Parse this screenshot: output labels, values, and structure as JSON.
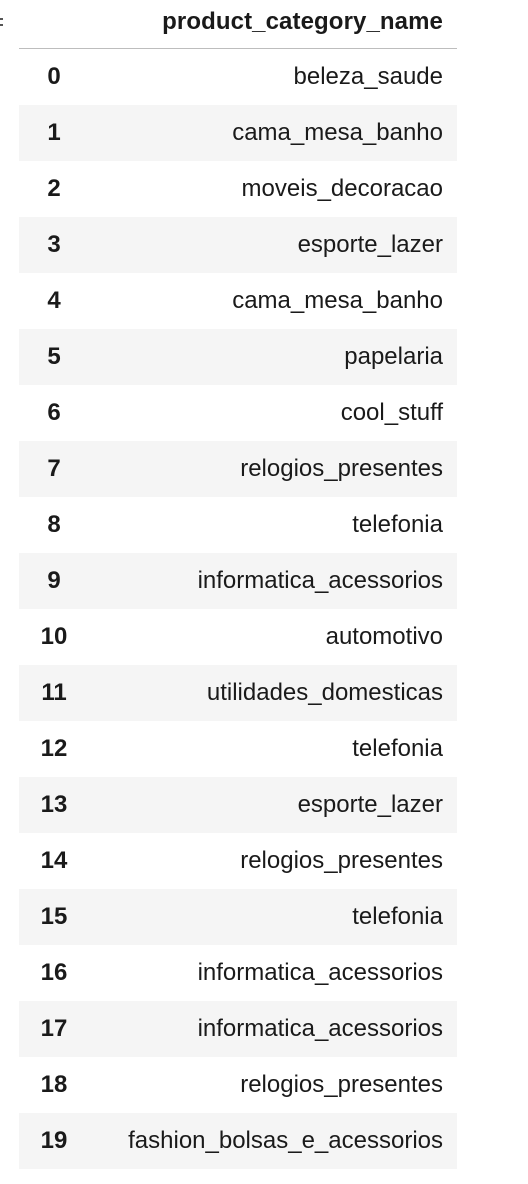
{
  "table": {
    "column_header": "product_category_name",
    "rows": [
      {
        "index": "0",
        "value": "beleza_saude"
      },
      {
        "index": "1",
        "value": "cama_mesa_banho"
      },
      {
        "index": "2",
        "value": "moveis_decoracao"
      },
      {
        "index": "3",
        "value": "esporte_lazer"
      },
      {
        "index": "4",
        "value": "cama_mesa_banho"
      },
      {
        "index": "5",
        "value": "papelaria"
      },
      {
        "index": "6",
        "value": "cool_stuff"
      },
      {
        "index": "7",
        "value": "relogios_presentes"
      },
      {
        "index": "8",
        "value": "telefonia"
      },
      {
        "index": "9",
        "value": "informatica_acessorios"
      },
      {
        "index": "10",
        "value": "automotivo"
      },
      {
        "index": "11",
        "value": "utilidades_domesticas"
      },
      {
        "index": "12",
        "value": "telefonia"
      },
      {
        "index": "13",
        "value": "esporte_lazer"
      },
      {
        "index": "14",
        "value": "relogios_presentes"
      },
      {
        "index": "15",
        "value": "telefonia"
      },
      {
        "index": "16",
        "value": "informatica_acessorios"
      },
      {
        "index": "17",
        "value": "informatica_acessorios"
      },
      {
        "index": "18",
        "value": "relogios_presentes"
      },
      {
        "index": "19",
        "value": "fashion_bolsas_e_acessorios"
      }
    ]
  },
  "colors": {
    "stripe": "#f5f5f5",
    "header_border": "#bdbdbd",
    "text": "#1a1a1a"
  }
}
